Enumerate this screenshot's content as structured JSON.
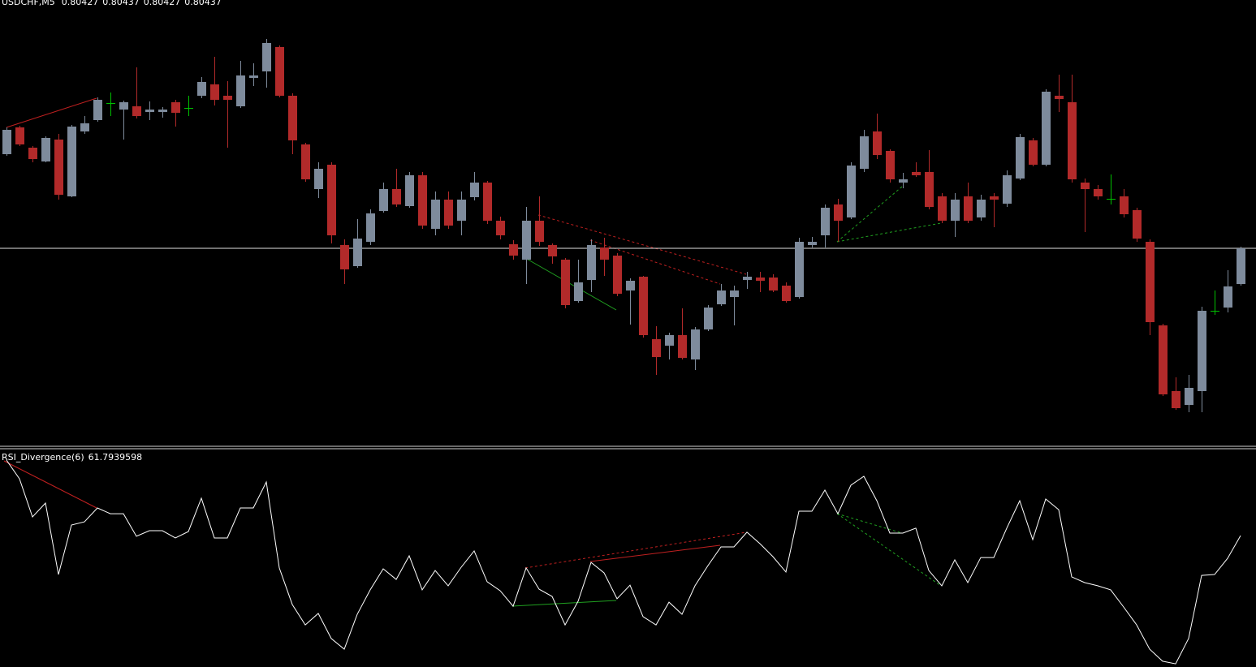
{
  "chart_data": {
    "type": "candlestick",
    "title": "USDCHF,M5",
    "header_values": [
      0.80427,
      0.80437,
      0.80427,
      0.80437
    ],
    "bid_line": 0.80437,
    "ylim": [
      0.80193,
      0.80743
    ],
    "up_color": "#7e8b9c",
    "down_color": "#b22a2a",
    "doji_color": "#00c000",
    "open": [
      0.80553,
      0.80586,
      0.80561,
      0.80544,
      0.80571,
      0.80501,
      0.80581,
      0.80595,
      0.80616,
      0.80608,
      0.80612,
      0.80605,
      0.80605,
      0.80617,
      0.8061,
      0.80625,
      0.80639,
      0.80625,
      0.80612,
      0.80647,
      0.80655,
      0.80685,
      0.80625,
      0.80565,
      0.8051,
      0.8054,
      0.80441,
      0.80415,
      0.80445,
      0.80483,
      0.8051,
      0.80489,
      0.80527,
      0.80461,
      0.80497,
      0.80471,
      0.805,
      0.80518,
      0.80471,
      0.80442,
      0.80423,
      0.80471,
      0.80441,
      0.80423,
      0.80372,
      0.80398,
      0.80438,
      0.80428,
      0.80385,
      0.80402,
      0.80325,
      0.80317,
      0.8033,
      0.803,
      0.80337,
      0.80368,
      0.80377,
      0.80398,
      0.80401,
      0.80401,
      0.80391,
      0.80377,
      0.80441,
      0.80453,
      0.80491,
      0.80475,
      0.80535,
      0.80581,
      0.80557,
      0.80518,
      0.80531,
      0.80531,
      0.80501,
      0.80471,
      0.80501,
      0.80475,
      0.80501,
      0.80492,
      0.80523,
      0.8057,
      0.8054,
      0.80625,
      0.80617,
      0.80518,
      0.8051,
      0.80498,
      0.80501,
      0.80484,
      0.80445,
      0.80342,
      0.80261,
      0.80244,
      0.80261,
      0.8036,
      0.80364,
      0.80393
    ],
    "high": [
      0.80586,
      0.80588,
      0.80563,
      0.80575,
      0.80578,
      0.80589,
      0.806,
      0.80623,
      0.80629,
      0.80619,
      0.8066,
      0.80618,
      0.80611,
      0.8062,
      0.80625,
      0.80648,
      0.80673,
      0.80643,
      0.80668,
      0.80665,
      0.80695,
      0.80687,
      0.80628,
      0.80567,
      0.80543,
      0.80543,
      0.80448,
      0.80473,
      0.80485,
      0.80518,
      0.80535,
      0.80531,
      0.80531,
      0.80507,
      0.80507,
      0.80507,
      0.80531,
      0.8052,
      0.80476,
      0.80447,
      0.80488,
      0.80501,
      0.80443,
      0.80425,
      0.80423,
      0.80448,
      0.8045,
      0.80431,
      0.804,
      0.80403,
      0.80341,
      0.80333,
      0.80363,
      0.8034,
      0.80367,
      0.80393,
      0.80391,
      0.80408,
      0.80408,
      0.80405,
      0.80395,
      0.8045,
      0.80451,
      0.80491,
      0.80498,
      0.80543,
      0.80583,
      0.80603,
      0.80559,
      0.8053,
      0.80543,
      0.80558,
      0.80505,
      0.80505,
      0.80518,
      0.80503,
      0.80505,
      0.80533,
      0.80578,
      0.80573,
      0.80633,
      0.80651,
      0.80651,
      0.80523,
      0.80515,
      0.80528,
      0.8051,
      0.80487,
      0.80448,
      0.80344,
      0.80278,
      0.80281,
      0.80365,
      0.80385,
      0.8041,
      0.80439
    ],
    "low": [
      0.80551,
      0.80563,
      0.80543,
      0.80543,
      0.80497,
      0.805,
      0.80578,
      0.80593,
      0.806,
      0.80571,
      0.80597,
      0.80595,
      0.80598,
      0.80587,
      0.806,
      0.80622,
      0.80613,
      0.80561,
      0.8061,
      0.80637,
      0.80635,
      0.80623,
      0.80553,
      0.80519,
      0.80499,
      0.80443,
      0.80393,
      0.80413,
      0.80441,
      0.80481,
      0.80488,
      0.80487,
      0.80461,
      0.80453,
      0.80461,
      0.80453,
      0.80496,
      0.80467,
      0.80448,
      0.80423,
      0.80393,
      0.8044,
      0.80418,
      0.80363,
      0.8037,
      0.80383,
      0.80403,
      0.80378,
      0.80343,
      0.80327,
      0.80281,
      0.803,
      0.803,
      0.80287,
      0.80335,
      0.80366,
      0.80342,
      0.80387,
      0.80383,
      0.80383,
      0.8037,
      0.80375,
      0.80438,
      0.80438,
      0.80445,
      0.80473,
      0.80531,
      0.80547,
      0.80518,
      0.80511,
      0.80525,
      0.80485,
      0.80468,
      0.80451,
      0.80468,
      0.80471,
      0.80463,
      0.80488,
      0.80521,
      0.80538,
      0.80538,
      0.80605,
      0.80518,
      0.80457,
      0.80497,
      0.80491,
      0.80475,
      0.80445,
      0.8033,
      0.80255,
      0.80238,
      0.80235,
      0.80235,
      0.80355,
      0.80358,
      0.80391
    ],
    "close": [
      0.80583,
      0.80565,
      0.80547,
      0.80573,
      0.80503,
      0.80587,
      0.80591,
      0.8062,
      0.80616,
      0.80617,
      0.806,
      0.80608,
      0.80608,
      0.80604,
      0.8061,
      0.80642,
      0.8062,
      0.8062,
      0.8065,
      0.8065,
      0.8069,
      0.80625,
      0.8057,
      0.80522,
      0.80535,
      0.80453,
      0.80411,
      0.80449,
      0.8048,
      0.8051,
      0.80491,
      0.80527,
      0.80465,
      0.80497,
      0.80465,
      0.80497,
      0.80518,
      0.80471,
      0.80453,
      0.80428,
      0.80471,
      0.80445,
      0.80427,
      0.80367,
      0.80395,
      0.80441,
      0.80423,
      0.80381,
      0.80397,
      0.8033,
      0.80303,
      0.8033,
      0.80302,
      0.80337,
      0.80364,
      0.80385,
      0.80385,
      0.80402,
      0.80397,
      0.80385,
      0.80372,
      0.80445,
      0.80445,
      0.80487,
      0.80471,
      0.80539,
      0.80575,
      0.80552,
      0.80522,
      0.80522,
      0.80527,
      0.80488,
      0.80471,
      0.80497,
      0.80471,
      0.80497,
      0.80497,
      0.80527,
      0.80574,
      0.8054,
      0.8063,
      0.80621,
      0.80522,
      0.8051,
      0.80501,
      0.80498,
      0.80479,
      0.80449,
      0.80346,
      0.80257,
      0.8024,
      0.80265,
      0.8036,
      0.8036,
      0.8039,
      0.80437
    ],
    "indicator": {
      "name": "RSI_Divergence(6)",
      "ylim": [
        0,
        100
      ],
      "color": "#ffffff",
      "values": [
        97.3,
        88.5,
        70.6,
        77.1,
        43.5,
        66.8,
        68.3,
        74.8,
        72.1,
        72.1,
        61.5,
        64.1,
        64.1,
        60.7,
        63.7,
        79.4,
        60.7,
        60.7,
        74.8,
        74.8,
        87.0,
        46.6,
        29.4,
        19.8,
        25.2,
        13.4,
        8.4,
        24.8,
        36.3,
        46.2,
        41.2,
        52.3,
        36.3,
        45.4,
        38.2,
        46.9,
        54.6,
        40.1,
        35.9,
        28.6,
        46.6,
        36.6,
        33.2,
        19.8,
        30.9,
        49.2,
        44.3,
        32.1,
        38.5,
        23.7,
        19.8,
        30.5,
        24.8,
        38.2,
        47.7,
        56.5,
        56.5,
        63.4,
        58.0,
        51.9,
        44.7,
        73.3,
        73.3,
        83.2,
        72.1,
        85.5,
        89.7,
        78.2,
        63.0,
        63.0,
        65.3,
        45.4,
        38.2,
        50.4,
        39.7,
        51.5,
        51.5,
        65.3,
        78.2,
        59.9,
        79.0,
        74.0,
        42.4,
        39.7,
        38.2,
        36.3,
        28.2,
        19.8,
        8.4,
        2.7,
        1.5,
        13.4,
        43.1,
        43.5,
        51.1,
        61.7939598
      ]
    }
  }
}
